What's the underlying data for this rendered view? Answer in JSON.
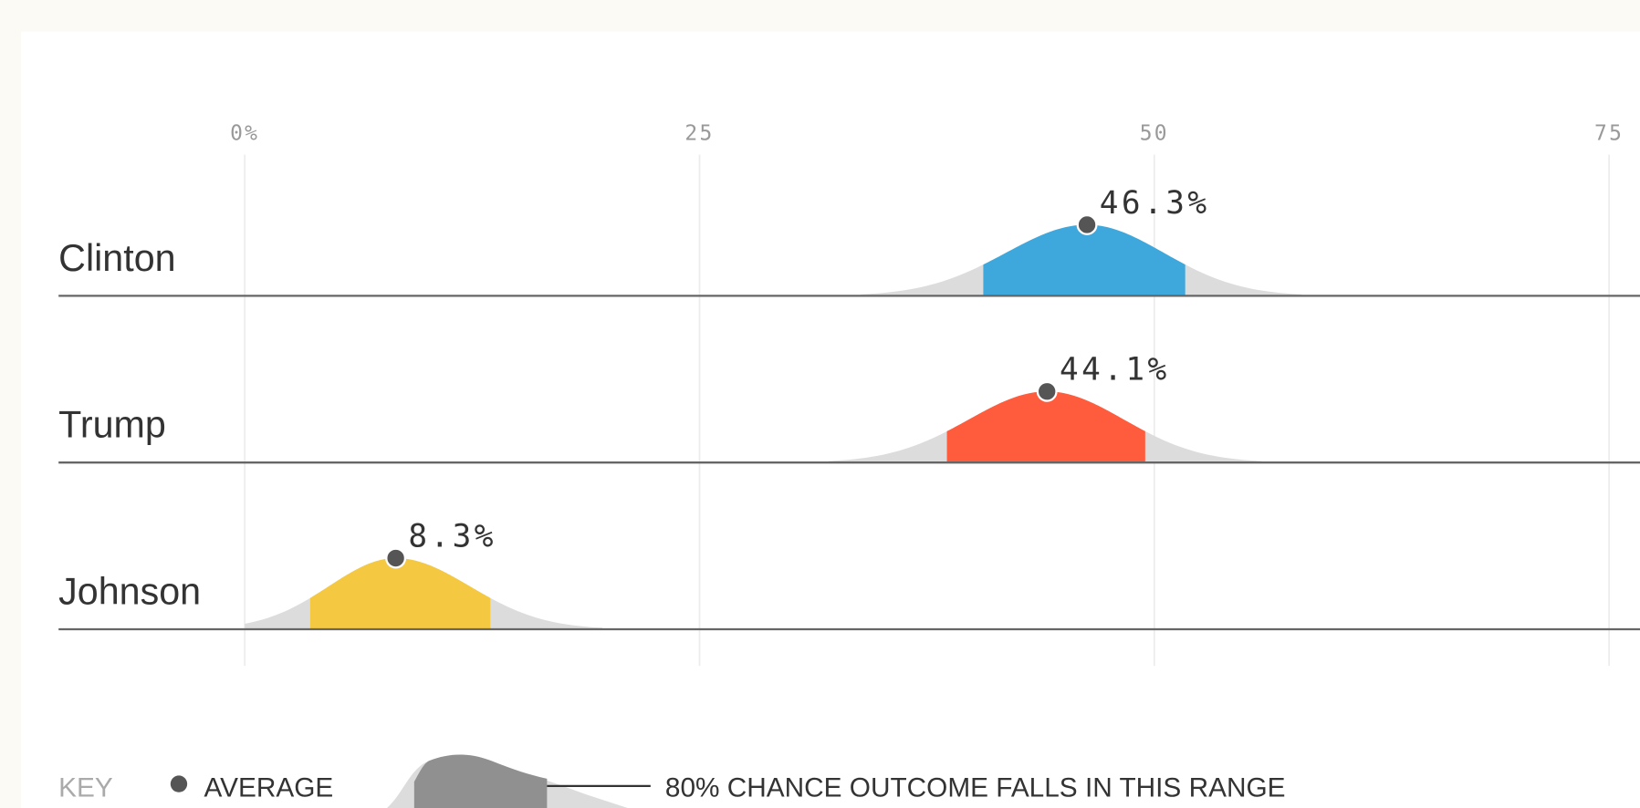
{
  "chart_data": {
    "type": "distribution",
    "categories": [
      "Clinton",
      "Trump",
      "Johnson"
    ],
    "values": [
      46.3,
      44.1,
      8.3
    ],
    "value_labels": [
      "46.3%",
      "44.1%",
      "8.3%"
    ],
    "range_low": [
      40.6,
      38.6,
      3.6
    ],
    "range_high": [
      51.7,
      49.5,
      13.5
    ],
    "colors": [
      "#3ea8dc",
      "#fe5c3d",
      "#f5c842"
    ],
    "xlim": [
      0,
      76.7
    ],
    "xticks": [
      {
        "value": 0,
        "label": "0%"
      },
      25,
      50,
      75
    ],
    "grid": true,
    "key": {
      "title": "KEY",
      "average": "AVERAGE",
      "range": "80% CHANCE OUTCOME FALLS IN THIS RANGE"
    }
  }
}
